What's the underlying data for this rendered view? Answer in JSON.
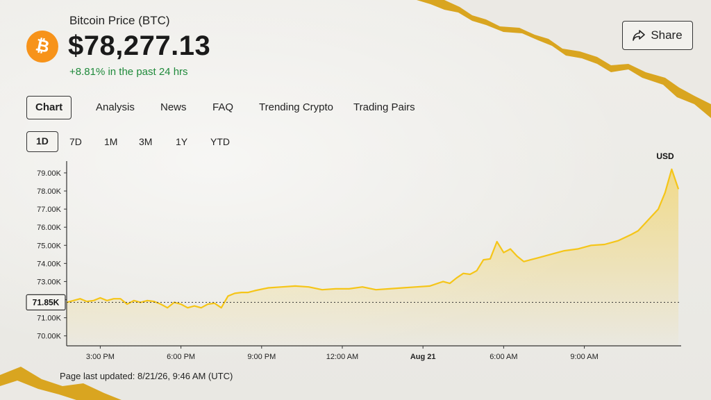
{
  "header": {
    "title": "Bitcoin Price (BTC)",
    "price": "$78,277.13",
    "change": "+8.81% in the past 24 hrs",
    "logo_glyph": "₿",
    "share_label": "Share",
    "share_icon": "share-arrow-icon"
  },
  "tabs": [
    {
      "label": "Chart",
      "active": true
    },
    {
      "label": "Analysis",
      "active": false
    },
    {
      "label": "News",
      "active": false
    },
    {
      "label": "FAQ",
      "active": false
    },
    {
      "label": "Trending Crypto",
      "active": false
    },
    {
      "label": "Trading Pairs",
      "active": false
    }
  ],
  "ranges": [
    {
      "label": "1D",
      "active": true
    },
    {
      "label": "7D",
      "active": false
    },
    {
      "label": "1M",
      "active": false
    },
    {
      "label": "3M",
      "active": false
    },
    {
      "label": "1Y",
      "active": false
    },
    {
      "label": "YTD",
      "active": false
    }
  ],
  "footer": "Page last updated: 8/21/26, 9:46 AM (UTC)",
  "colors": {
    "line": "#f5c518",
    "brand": "#f7931a",
    "positive": "#1f8a3b"
  },
  "chart_data": {
    "type": "area",
    "currency_label": "USD",
    "reference_label": "71.85K",
    "reference_value": 71.85,
    "ylim": [
      70,
      79.5
    ],
    "yticks": [
      "70.00K",
      "71.00K",
      "72.00K",
      "73.00K",
      "74.00K",
      "75.00K",
      "76.00K",
      "77.00K",
      "78.00K",
      "79.00K"
    ],
    "ytick_values": [
      70,
      71,
      72,
      73,
      74,
      75,
      76,
      77,
      78,
      79
    ],
    "xlim": [
      0,
      21.75
    ],
    "xticks": [
      {
        "label": "3:00 PM",
        "h": 3,
        "bold": false
      },
      {
        "label": "6:00 PM",
        "h": 6,
        "bold": false
      },
      {
        "label": "9:00 PM",
        "h": 9,
        "bold": false
      },
      {
        "label": "12:00 AM",
        "h": 12,
        "bold": false
      },
      {
        "label": "Aug 21",
        "h": 15,
        "bold": true
      },
      {
        "label": "6:00 AM",
        "h": 18,
        "bold": false
      },
      {
        "label": "9:00 AM",
        "h": 21,
        "bold": false
      }
    ],
    "grid": false,
    "series": [
      {
        "x": [
          0,
          0.25,
          0.5,
          0.75,
          1.0,
          1.25,
          1.5,
          1.75,
          2.0,
          2.25,
          2.5,
          2.75,
          3.0,
          3.25,
          3.5,
          3.75,
          4.0,
          4.25,
          4.5,
          4.75,
          5.0,
          5.25,
          5.5,
          5.75,
          6.0,
          6.25,
          6.5,
          6.75,
          7.0,
          7.5,
          8.0,
          8.5,
          9.0,
          9.5,
          10.0,
          10.5,
          11.0,
          11.5,
          12.0,
          12.5,
          13.0,
          13.5,
          14.0,
          14.25,
          14.5,
          14.75,
          15.0,
          15.25,
          15.5,
          15.75,
          16.0,
          16.25,
          16.5,
          16.75,
          17.0,
          17.25,
          17.5,
          17.75,
          18.0,
          18.5,
          19.0,
          19.5,
          20.0,
          20.5,
          21.0,
          21.25,
          21.5,
          21.75,
          22.0,
          22.25,
          22.5,
          22.75
        ],
        "y": [
          71.85,
          71.95,
          72.05,
          71.9,
          71.95,
          72.1,
          71.95,
          72.05,
          72.05,
          71.75,
          71.95,
          71.85,
          71.95,
          71.9,
          71.75,
          71.55,
          71.85,
          71.75,
          71.55,
          71.65,
          71.55,
          71.75,
          71.8,
          71.55,
          72.2,
          72.35,
          72.4,
          72.4,
          72.5,
          72.65,
          72.7,
          72.75,
          72.7,
          72.55,
          72.6,
          72.6,
          72.7,
          72.55,
          72.6,
          72.65,
          72.7,
          72.75,
          73.0,
          72.9,
          73.2,
          73.45,
          73.4,
          73.6,
          74.2,
          74.25,
          75.2,
          74.6,
          74.8,
          74.4,
          74.1,
          74.2,
          74.3,
          74.4,
          74.5,
          74.7,
          74.8,
          75.0,
          75.05,
          75.25,
          75.6,
          75.8,
          76.2,
          76.6,
          77.0,
          77.9,
          79.2,
          78.1
        ]
      }
    ]
  }
}
